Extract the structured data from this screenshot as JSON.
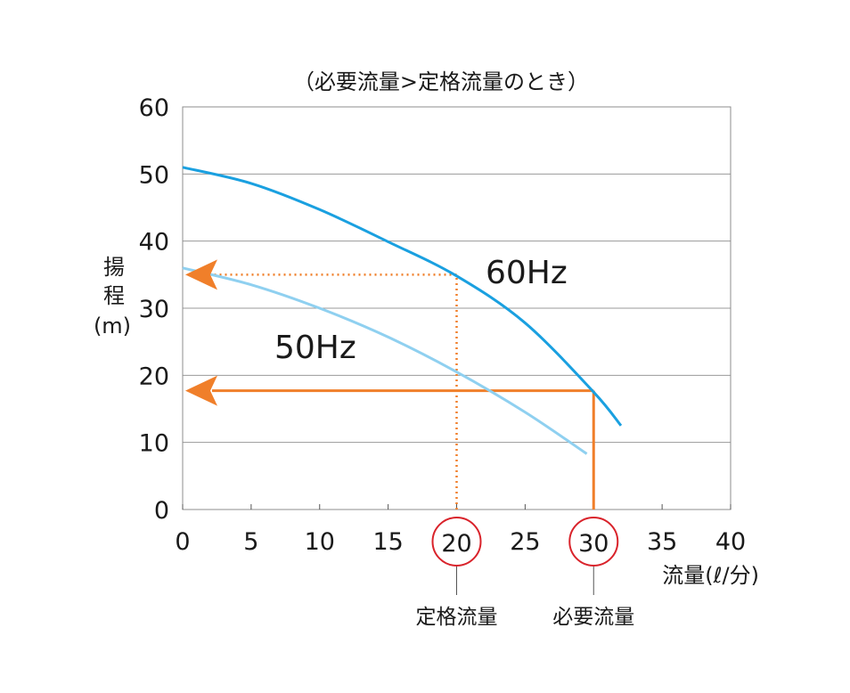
{
  "chart_data": {
    "type": "line",
    "title": "（必要流量>定格流量のとき）",
    "xlabel": "流量(ℓ/分)",
    "ylabel": [
      "揚",
      "程",
      "(m)"
    ],
    "xlim": [
      0,
      40
    ],
    "ylim": [
      0,
      60
    ],
    "x_ticks": [
      "0",
      "5",
      "10",
      "15",
      "20",
      "25",
      "30",
      "35",
      "40"
    ],
    "y_ticks": [
      "0",
      "10",
      "20",
      "30",
      "40",
      "50",
      "60"
    ],
    "grid": "horizontal",
    "series": [
      {
        "name": "60Hz",
        "color": "#1aa0e0",
        "x": [
          0,
          5,
          10,
          15,
          20,
          25,
          30,
          32
        ],
        "y": [
          51,
          48.6,
          44.7,
          39.9,
          34.8,
          27.8,
          17.5,
          12.5
        ]
      },
      {
        "name": "50Hz",
        "color": "#8fd0f0",
        "x": [
          0,
          5,
          10,
          15,
          20,
          25,
          29.5
        ],
        "y": [
          36,
          33.5,
          30,
          25.7,
          20.5,
          14.5,
          8.3
        ]
      }
    ],
    "annotations": [
      {
        "label": "定格流量",
        "x": 20,
        "y": 35,
        "style": "dotted",
        "color": "#f07f2a",
        "circled_tick": "20"
      },
      {
        "label": "必要流量",
        "x": 30,
        "y": 17.7,
        "style": "solid",
        "color": "#f07f2a",
        "circled_tick": "30"
      }
    ],
    "circle_color": "#d9232b"
  }
}
